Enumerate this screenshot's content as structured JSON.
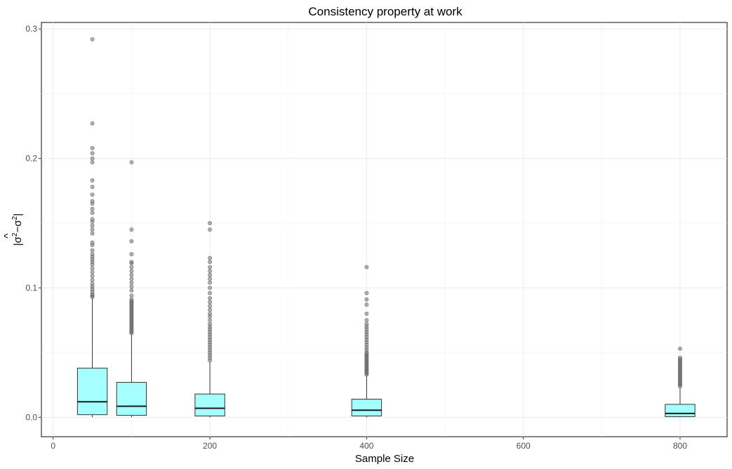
{
  "chart_data": {
    "type": "box",
    "title": "Consistency property at work",
    "xlabel": "Sample Size",
    "ylabel": {
      "accent": "^",
      "base": "σ",
      "exp": "2",
      "minus": "−",
      "bar": "|"
    },
    "xlim": [
      -15,
      860
    ],
    "ylim": [
      -0.015,
      0.305
    ],
    "x_ticks": [
      0,
      200,
      400,
      600,
      800
    ],
    "y_ticks": [
      0.0,
      0.1,
      0.2,
      0.3
    ],
    "y_tick_labels": [
      "0.0",
      "0.1",
      "0.2",
      "0.3"
    ],
    "box_width": 38,
    "grid": true,
    "fill_color": "#a6ffff",
    "series": [
      {
        "x": 50,
        "q1": 0.002,
        "median": 0.012,
        "q3": 0.038,
        "whisker_low": 0.0,
        "whisker_high": 0.092,
        "outliers": [
          0.093,
          0.094,
          0.095,
          0.097,
          0.099,
          0.101,
          0.103,
          0.106,
          0.109,
          0.112,
          0.115,
          0.118,
          0.12,
          0.122,
          0.124,
          0.126,
          0.129,
          0.133,
          0.135,
          0.142,
          0.145,
          0.148,
          0.151,
          0.153,
          0.158,
          0.161,
          0.165,
          0.167,
          0.172,
          0.178,
          0.183,
          0.197,
          0.2,
          0.204,
          0.208,
          0.227,
          0.292
        ]
      },
      {
        "x": 100,
        "q1": 0.0015,
        "median": 0.0085,
        "q3": 0.027,
        "whisker_low": 0.0,
        "whisker_high": 0.064,
        "outliers": [
          0.065,
          0.066,
          0.067,
          0.068,
          0.069,
          0.07,
          0.071,
          0.072,
          0.073,
          0.074,
          0.075,
          0.076,
          0.077,
          0.078,
          0.079,
          0.08,
          0.081,
          0.082,
          0.083,
          0.084,
          0.085,
          0.086,
          0.087,
          0.088,
          0.089,
          0.09,
          0.091,
          0.094,
          0.098,
          0.101,
          0.104,
          0.107,
          0.11,
          0.113,
          0.116,
          0.119,
          0.12,
          0.126,
          0.136,
          0.145,
          0.197
        ]
      },
      {
        "x": 200,
        "q1": 0.001,
        "median": 0.007,
        "q3": 0.018,
        "whisker_low": 0.0,
        "whisker_high": 0.043,
        "outliers": [
          0.044,
          0.046,
          0.048,
          0.05,
          0.052,
          0.054,
          0.056,
          0.058,
          0.06,
          0.062,
          0.064,
          0.066,
          0.068,
          0.07,
          0.072,
          0.075,
          0.078,
          0.08,
          0.083,
          0.086,
          0.089,
          0.092,
          0.096,
          0.1,
          0.104,
          0.107,
          0.11,
          0.113,
          0.116,
          0.12,
          0.123,
          0.145,
          0.15
        ]
      },
      {
        "x": 400,
        "q1": 0.001,
        "median": 0.0055,
        "q3": 0.014,
        "whisker_low": 0.0,
        "whisker_high": 0.032,
        "outliers": [
          0.033,
          0.034,
          0.035,
          0.036,
          0.037,
          0.038,
          0.039,
          0.04,
          0.041,
          0.042,
          0.043,
          0.044,
          0.045,
          0.046,
          0.047,
          0.048,
          0.049,
          0.05,
          0.052,
          0.054,
          0.056,
          0.058,
          0.06,
          0.062,
          0.064,
          0.066,
          0.068,
          0.07,
          0.072,
          0.075,
          0.08,
          0.087,
          0.091,
          0.096,
          0.116
        ]
      },
      {
        "x": 800,
        "q1": 0.0005,
        "median": 0.003,
        "q3": 0.01,
        "whisker_low": 0.0,
        "whisker_high": 0.023,
        "outliers": [
          0.024,
          0.025,
          0.026,
          0.027,
          0.028,
          0.029,
          0.03,
          0.031,
          0.032,
          0.033,
          0.034,
          0.035,
          0.036,
          0.037,
          0.038,
          0.039,
          0.04,
          0.041,
          0.042,
          0.043,
          0.044,
          0.045,
          0.046,
          0.053
        ]
      }
    ]
  }
}
